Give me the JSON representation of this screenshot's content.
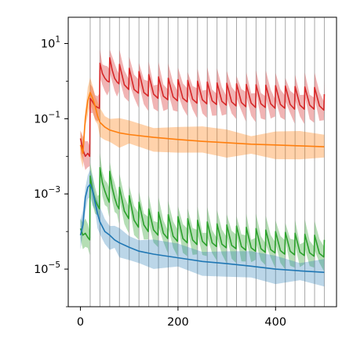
{
  "chart_data": {
    "type": "line",
    "title": "",
    "xlabel": "",
    "ylabel": "",
    "x_scale": "linear",
    "y_scale": "log",
    "xlim": [
      -25,
      525
    ],
    "ylim": [
      1e-06,
      50
    ],
    "x_ticks": [
      {
        "value": 0,
        "label": "0"
      },
      {
        "value": 200,
        "label": "200"
      },
      {
        "value": 400,
        "label": "400"
      }
    ],
    "y_ticks": [
      {
        "value": 10,
        "base": "10",
        "exp": "1"
      },
      {
        "value": 0.1,
        "base": "10",
        "exp": "−1"
      },
      {
        "value": 0.001,
        "base": "10",
        "exp": "−3"
      },
      {
        "value": 1e-05,
        "base": "10",
        "exp": "−5"
      }
    ],
    "grid": "vertical lines at x = 20, 40, …, 500",
    "vlines": [
      20,
      40,
      60,
      80,
      100,
      120,
      140,
      160,
      180,
      200,
      220,
      240,
      260,
      280,
      300,
      320,
      340,
      360,
      380,
      400,
      420,
      440,
      460,
      480,
      500
    ],
    "legend": "none",
    "series": [
      {
        "color": "#d62728",
        "band_opacity": 0.35,
        "points": [
          [
            0,
            0.03
          ],
          [
            5,
            0.015
          ],
          [
            10,
            0.01
          ],
          [
            15,
            0.012
          ],
          [
            19,
            0.01
          ],
          [
            20,
            0.35
          ],
          [
            25,
            0.28
          ],
          [
            30,
            0.22
          ],
          [
            35,
            0.2
          ],
          [
            39,
            0.19
          ],
          [
            40,
            3
          ],
          [
            45,
            1.6
          ],
          [
            50,
            1.2
          ],
          [
            55,
            1.0
          ],
          [
            59,
            0.95
          ],
          [
            60,
            4.2
          ],
          [
            65,
            2
          ],
          [
            70,
            1.2
          ],
          [
            75,
            0.95
          ],
          [
            79,
            0.85
          ],
          [
            80,
            2.8
          ],
          [
            90,
            0.8
          ],
          [
            99,
            0.6
          ],
          [
            100,
            2.2
          ],
          [
            110,
            0.6
          ],
          [
            119,
            0.48
          ],
          [
            120,
            1.8
          ],
          [
            130,
            0.5
          ],
          [
            139,
            0.4
          ],
          [
            140,
            1.5
          ],
          [
            150,
            0.45
          ],
          [
            159,
            0.35
          ],
          [
            160,
            1.3
          ],
          [
            170,
            0.4
          ],
          [
            179,
            0.32
          ],
          [
            180,
            1.2
          ],
          [
            190,
            0.38
          ],
          [
            199,
            0.3
          ],
          [
            200,
            1.1
          ],
          [
            210,
            0.35
          ],
          [
            219,
            0.28
          ],
          [
            220,
            1.05
          ],
          [
            230,
            0.33
          ],
          [
            239,
            0.26
          ],
          [
            240,
            1.0
          ],
          [
            250,
            0.32
          ],
          [
            259,
            0.25
          ],
          [
            260,
            0.95
          ],
          [
            270,
            0.3
          ],
          [
            279,
            0.24
          ],
          [
            280,
            0.9
          ],
          [
            290,
            0.29
          ],
          [
            299,
            0.23
          ],
          [
            300,
            0.88
          ],
          [
            310,
            0.28
          ],
          [
            319,
            0.22
          ],
          [
            320,
            0.85
          ],
          [
            330,
            0.27
          ],
          [
            339,
            0.21
          ],
          [
            340,
            0.82
          ],
          [
            350,
            0.26
          ],
          [
            359,
            0.2
          ],
          [
            360,
            0.8
          ],
          [
            370,
            0.25
          ],
          [
            379,
            0.2
          ],
          [
            380,
            0.78
          ],
          [
            390,
            0.25
          ],
          [
            399,
            0.19
          ],
          [
            400,
            0.76
          ],
          [
            410,
            0.24
          ],
          [
            419,
            0.19
          ],
          [
            420,
            0.74
          ],
          [
            430,
            0.24
          ],
          [
            439,
            0.18
          ],
          [
            440,
            0.72
          ],
          [
            450,
            0.23
          ],
          [
            459,
            0.18
          ],
          [
            460,
            0.7
          ],
          [
            470,
            0.23
          ],
          [
            479,
            0.18
          ],
          [
            480,
            0.68
          ],
          [
            490,
            0.22
          ],
          [
            499,
            0.17
          ],
          [
            500,
            0.45
          ]
        ]
      },
      {
        "color": "#ff7f0e",
        "band_opacity": 0.35,
        "points": [
          [
            0,
            0.02
          ],
          [
            5,
            0.012
          ],
          [
            10,
            0.1
          ],
          [
            15,
            0.3
          ],
          [
            20,
            0.5
          ],
          [
            25,
            0.35
          ],
          [
            30,
            0.22
          ],
          [
            35,
            0.12
          ],
          [
            40,
            0.08
          ],
          [
            50,
            0.06
          ],
          [
            60,
            0.05
          ],
          [
            80,
            0.042
          ],
          [
            100,
            0.038
          ],
          [
            150,
            0.032
          ],
          [
            200,
            0.028
          ],
          [
            250,
            0.025
          ],
          [
            300,
            0.023
          ],
          [
            350,
            0.021
          ],
          [
            400,
            0.02
          ],
          [
            450,
            0.019
          ],
          [
            500,
            0.018
          ]
        ]
      },
      {
        "color": "#2ca02c",
        "band_opacity": 0.35,
        "points": [
          [
            0,
            0.00012
          ],
          [
            5,
            8e-05
          ],
          [
            10,
            9e-05
          ],
          [
            15,
            7e-05
          ],
          [
            19,
            6e-05
          ],
          [
            20,
            0.003
          ],
          [
            25,
            0.0012
          ],
          [
            30,
            0.0007
          ],
          [
            35,
            0.0005
          ],
          [
            39,
            0.0004
          ],
          [
            40,
            0.005
          ],
          [
            45,
            0.002
          ],
          [
            50,
            0.0012
          ],
          [
            55,
            0.0008
          ],
          [
            59,
            0.0006
          ],
          [
            60,
            0.004
          ],
          [
            65,
            0.0015
          ],
          [
            70,
            0.0008
          ],
          [
            75,
            0.0005
          ],
          [
            79,
            0.0004
          ],
          [
            80,
            0.0015
          ],
          [
            90,
            0.00035
          ],
          [
            99,
            0.00022
          ],
          [
            100,
            0.0009
          ],
          [
            110,
            0.0002
          ],
          [
            119,
            0.00013
          ],
          [
            120,
            0.0006
          ],
          [
            130,
            0.00015
          ],
          [
            139,
            0.0001
          ],
          [
            140,
            0.0004
          ],
          [
            150,
            0.00011
          ],
          [
            159,
            8e-05
          ],
          [
            160,
            0.00033
          ],
          [
            170,
            9e-05
          ],
          [
            179,
            6.5e-05
          ],
          [
            180,
            0.00028
          ],
          [
            190,
            7.5e-05
          ],
          [
            199,
            5.5e-05
          ],
          [
            200,
            0.00025
          ],
          [
            210,
            6.5e-05
          ],
          [
            219,
            5e-05
          ],
          [
            220,
            0.00022
          ],
          [
            230,
            6e-05
          ],
          [
            239,
            4.5e-05
          ],
          [
            240,
            0.0002
          ],
          [
            250,
            5.5e-05
          ],
          [
            259,
            4.2e-05
          ],
          [
            260,
            0.00018
          ],
          [
            270,
            5e-05
          ],
          [
            279,
            4e-05
          ],
          [
            280,
            0.00016
          ],
          [
            290,
            4.6e-05
          ],
          [
            299,
            3.7e-05
          ],
          [
            300,
            0.00015
          ],
          [
            310,
            4.3e-05
          ],
          [
            319,
            3.5e-05
          ],
          [
            320,
            0.00014
          ],
          [
            330,
            4e-05
          ],
          [
            339,
            3.2e-05
          ],
          [
            340,
            0.00013
          ],
          [
            350,
            3.7e-05
          ],
          [
            359,
            3e-05
          ],
          [
            360,
            0.00012
          ],
          [
            370,
            3.5e-05
          ],
          [
            379,
            2.8e-05
          ],
          [
            380,
            0.00011
          ],
          [
            390,
            3.3e-05
          ],
          [
            399,
            2.7e-05
          ],
          [
            400,
            0.0001
          ],
          [
            410,
            3.1e-05
          ],
          [
            419,
            2.5e-05
          ],
          [
            420,
            9.5e-05
          ],
          [
            430,
            3e-05
          ],
          [
            439,
            2.4e-05
          ],
          [
            440,
            9e-05
          ],
          [
            450,
            2.8e-05
          ],
          [
            459,
            2.3e-05
          ],
          [
            460,
            8.5e-05
          ],
          [
            470,
            2.7e-05
          ],
          [
            479,
            2.2e-05
          ],
          [
            480,
            8e-05
          ],
          [
            490,
            2.6e-05
          ],
          [
            499,
            2.1e-05
          ],
          [
            500,
            6e-05
          ]
        ]
      },
      {
        "color": "#1f77b4",
        "band_opacity": 0.3,
        "points": [
          [
            0,
            8e-05
          ],
          [
            5,
            0.00015
          ],
          [
            10,
            0.0008
          ],
          [
            15,
            0.0015
          ],
          [
            20,
            0.0018
          ],
          [
            25,
            0.0012
          ],
          [
            30,
            0.0006
          ],
          [
            35,
            0.0003
          ],
          [
            40,
            0.00018
          ],
          [
            50,
            0.0001
          ],
          [
            60,
            8e-05
          ],
          [
            70,
            6e-05
          ],
          [
            80,
            5e-05
          ],
          [
            100,
            3.8e-05
          ],
          [
            120,
            3e-05
          ],
          [
            150,
            2.5e-05
          ],
          [
            200,
            2e-05
          ],
          [
            250,
            1.6e-05
          ],
          [
            300,
            1.4e-05
          ],
          [
            350,
            1.2e-05
          ],
          [
            400,
            1e-05
          ],
          [
            450,
            9e-06
          ],
          [
            500,
            8.2e-06
          ]
        ]
      }
    ]
  }
}
